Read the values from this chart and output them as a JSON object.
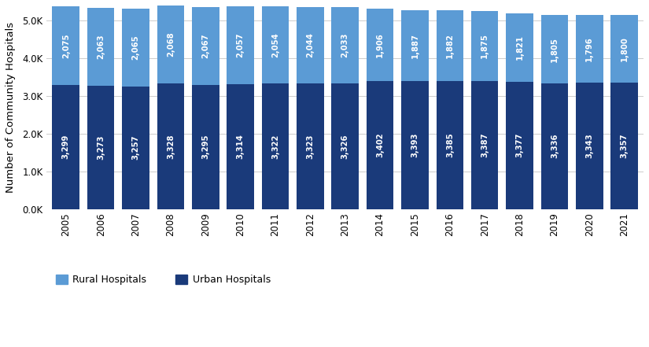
{
  "years": [
    2005,
    2006,
    2007,
    2008,
    2009,
    2010,
    2011,
    2012,
    2013,
    2014,
    2015,
    2016,
    2017,
    2018,
    2019,
    2020,
    2021
  ],
  "urban": [
    3299,
    3273,
    3257,
    3328,
    3295,
    3314,
    3322,
    3323,
    3326,
    3402,
    3393,
    3385,
    3387,
    3377,
    3336,
    3343,
    3357
  ],
  "rural": [
    2075,
    2063,
    2065,
    2068,
    2067,
    2057,
    2054,
    2044,
    2033,
    1906,
    1887,
    1882,
    1875,
    1821,
    1805,
    1796,
    1800
  ],
  "urban_color": "#1a3a7a",
  "rural_color": "#5b9bd5",
  "ylabel": "Number of Community Hospitals",
  "ylim": [
    0,
    5400
  ],
  "ytick_vals": [
    0,
    1000,
    2000,
    3000,
    4000,
    5000
  ],
  "ytick_labels": [
    "0.0K",
    "1.0K",
    "2.0K",
    "3.0K",
    "4.0K",
    "5.0K"
  ],
  "legend_rural": "Rural Hospitals",
  "legend_urban": "Urban Hospitals",
  "bar_width": 0.78,
  "label_fontsize": 7.2,
  "axis_label_fontsize": 9.5,
  "tick_fontsize": 8.5,
  "background_color": "#ffffff",
  "grid_color": "#cccccc"
}
